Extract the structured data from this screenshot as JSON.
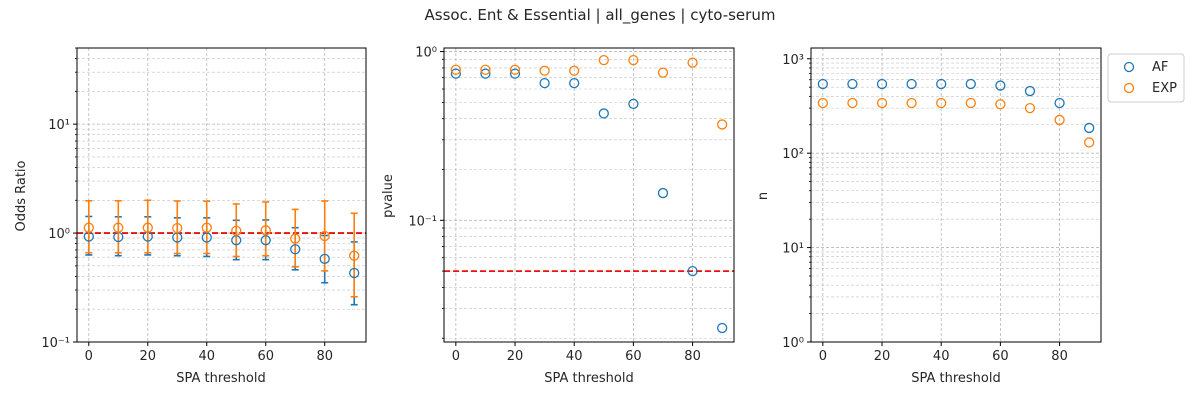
{
  "figure": {
    "suptitle": "Assoc. Ent & Essential | all_genes | cyto-serum",
    "colors": {
      "AF": "#1f77b4",
      "EXP": "#ff7f0e",
      "reference": "#e8120c",
      "grid": "#b0b0b0"
    },
    "legend": {
      "placement": "outside-right-top",
      "entries": [
        "AF",
        "EXP"
      ]
    }
  },
  "chart_data": [
    {
      "type": "scatter",
      "title": "",
      "xlabel": "SPA threshold",
      "ylabel": "Odds Ratio",
      "yscale": "log",
      "xlim": [
        -4,
        94
      ],
      "ylim": [
        0.1,
        50
      ],
      "xticks": [
        0,
        20,
        40,
        60,
        80
      ],
      "xtick_labels": [
        "0",
        "20",
        "40",
        "60",
        "80"
      ],
      "yticks": [
        0.1,
        1,
        10
      ],
      "ytick_labels": [
        "10⁻¹",
        "10⁰",
        "10¹"
      ],
      "grid": true,
      "reference_line": {
        "y": 1,
        "style": "dashed",
        "color": "red"
      },
      "x": [
        0,
        10,
        20,
        30,
        40,
        50,
        60,
        70,
        80,
        90
      ],
      "series": [
        {
          "name": "AF",
          "values": [
            0.93,
            0.92,
            0.93,
            0.91,
            0.91,
            0.86,
            0.86,
            0.71,
            0.58,
            0.43
          ],
          "err_low": [
            0.63,
            0.62,
            0.63,
            0.62,
            0.61,
            0.57,
            0.57,
            0.46,
            0.35,
            0.22
          ],
          "err_high": [
            1.42,
            1.41,
            1.41,
            1.38,
            1.38,
            1.31,
            1.32,
            1.12,
            0.95,
            0.83
          ]
        },
        {
          "name": "EXP",
          "values": [
            1.12,
            1.12,
            1.12,
            1.11,
            1.12,
            1.05,
            1.06,
            0.89,
            0.94,
            0.62
          ],
          "err_low": [
            0.66,
            0.66,
            0.66,
            0.65,
            0.65,
            0.61,
            0.62,
            0.49,
            0.45,
            0.26
          ],
          "err_high": [
            1.98,
            1.98,
            2.0,
            1.97,
            1.96,
            1.85,
            1.93,
            1.65,
            1.97,
            1.52
          ]
        }
      ]
    },
    {
      "type": "scatter",
      "title": "",
      "xlabel": "SPA threshold",
      "ylabel": "pvalue",
      "yscale": "log",
      "xlim": [
        -4,
        94
      ],
      "ylim": [
        0.019,
        1.05
      ],
      "xticks": [
        0,
        20,
        40,
        60,
        80
      ],
      "xtick_labels": [
        "0",
        "20",
        "40",
        "60",
        "80"
      ],
      "yticks": [
        0.1,
        1
      ],
      "ytick_labels": [
        "10⁻¹",
        "10⁰"
      ],
      "grid": true,
      "reference_line": {
        "y": 0.05,
        "style": "dashed",
        "color": "red"
      },
      "x": [
        0,
        10,
        20,
        30,
        40,
        50,
        60,
        70,
        80,
        90
      ],
      "series": [
        {
          "name": "AF",
          "values": [
            0.74,
            0.74,
            0.74,
            0.65,
            0.65,
            0.43,
            0.49,
            0.145,
            0.05,
            0.023
          ]
        },
        {
          "name": "EXP",
          "values": [
            0.78,
            0.78,
            0.78,
            0.77,
            0.77,
            0.89,
            0.89,
            0.75,
            0.86,
            0.37
          ]
        }
      ]
    },
    {
      "type": "scatter",
      "title": "",
      "xlabel": "SPA threshold",
      "ylabel": "n",
      "yscale": "log",
      "xlim": [
        -4,
        94
      ],
      "ylim": [
        1,
        1300
      ],
      "xticks": [
        0,
        20,
        40,
        60,
        80
      ],
      "xtick_labels": [
        "0",
        "20",
        "40",
        "60",
        "80"
      ],
      "yticks": [
        1,
        10,
        100,
        1000
      ],
      "ytick_labels": [
        "10⁰",
        "10¹",
        "10²",
        "10³"
      ],
      "grid": true,
      "x": [
        0,
        10,
        20,
        30,
        40,
        50,
        60,
        70,
        80,
        90
      ],
      "series": [
        {
          "name": "AF",
          "values": [
            540,
            540,
            540,
            540,
            540,
            540,
            520,
            455,
            340,
            185
          ]
        },
        {
          "name": "EXP",
          "values": [
            340,
            340,
            340,
            340,
            340,
            340,
            330,
            300,
            225,
            130
          ]
        }
      ]
    }
  ]
}
